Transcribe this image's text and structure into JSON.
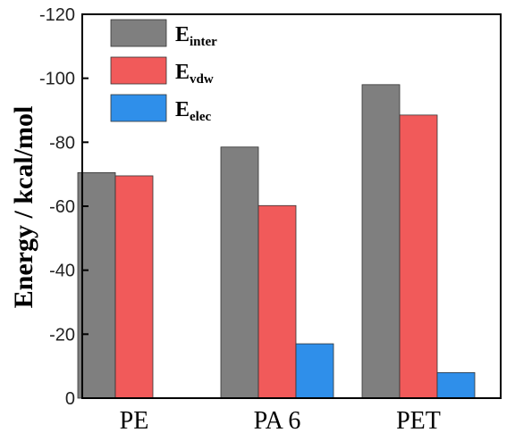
{
  "chart_data": {
    "type": "bar",
    "categories": [
      "PE",
      "PA 6",
      "PET"
    ],
    "series": [
      {
        "name_main": "E",
        "name_sub": "inter",
        "name": "Einter",
        "values": [
          -70.5,
          -78.5,
          -98
        ],
        "color": "#7f7f7f"
      },
      {
        "name_main": "E",
        "name_sub": "vdw",
        "name": "Evdw",
        "values": [
          -69.5,
          -60.2,
          -88.5
        ],
        "color": "#f15a5a"
      },
      {
        "name_main": "E",
        "name_sub": "elec",
        "name": "Eelec",
        "values": [
          null,
          -17,
          -8
        ],
        "color": "#2f8fea"
      }
    ],
    "ylabel": "Energy / kcal/mol",
    "ylim": [
      0,
      -120
    ],
    "yticks": [
      0,
      -20,
      -40,
      -60,
      -80,
      -100,
      -120
    ],
    "y_inverted": true,
    "legend_position": "top-left",
    "grid": false
  }
}
